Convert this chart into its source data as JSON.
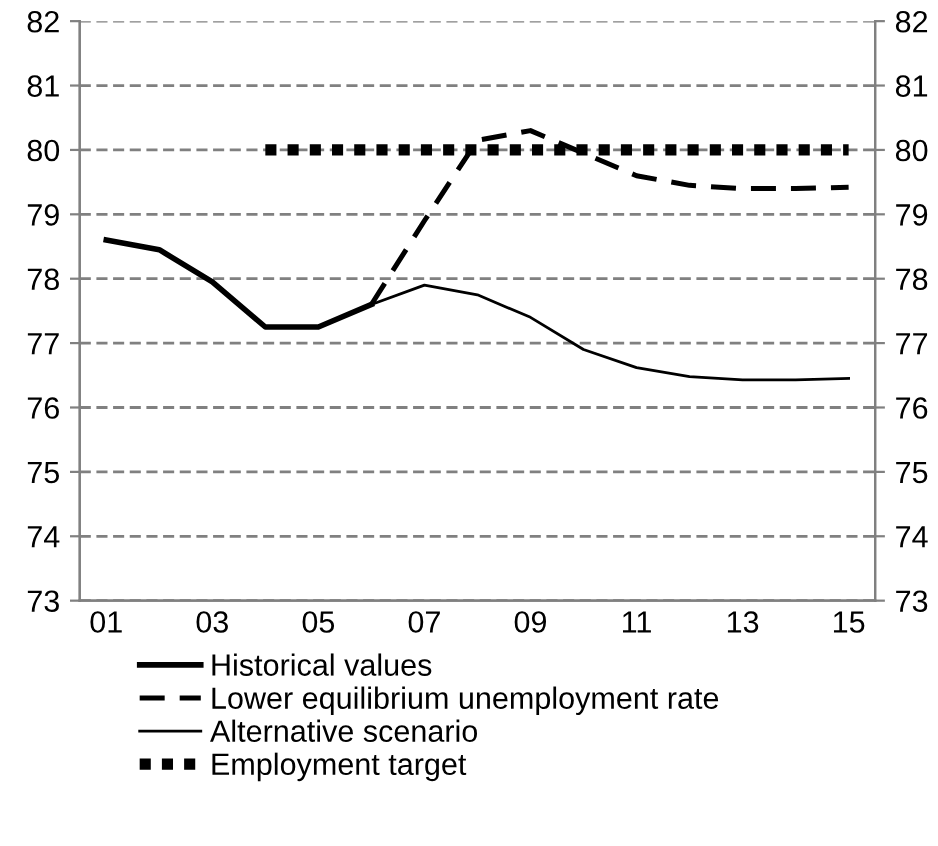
{
  "chart_data": {
    "type": "line",
    "categories": [
      "01",
      null,
      "03",
      null,
      "05",
      null,
      "07",
      null,
      "09",
      null,
      "11",
      null,
      "13",
      null,
      "15"
    ],
    "series": [
      {
        "name": "Historical values",
        "color": "#000000",
        "line_style": "solid",
        "values": [
          78.6,
          78.45,
          77.95,
          77.25,
          77.25,
          77.6,
          null,
          null,
          null,
          null,
          null,
          null,
          null,
          null,
          null
        ]
      },
      {
        "name": "Lower equilibrium unemployment rate",
        "color": "#000000",
        "line_style": "dashed",
        "values": [
          null,
          null,
          null,
          null,
          null,
          77.6,
          78.9,
          80.15,
          80.3,
          79.95,
          79.6,
          79.45,
          79.4,
          79.4,
          79.42
        ]
      },
      {
        "name": "Alternative scenario",
        "color": "#000000",
        "line_style": "solid",
        "values": [
          null,
          null,
          null,
          null,
          null,
          77.6,
          77.9,
          77.75,
          77.4,
          76.9,
          76.62,
          76.48,
          76.43,
          76.43,
          76.45
        ]
      },
      {
        "name": "Employment target",
        "color": "#000000",
        "line_style": "dotted",
        "values": [
          null,
          null,
          null,
          80,
          80,
          80,
          80,
          80,
          80,
          80,
          80,
          80,
          80,
          80,
          80
        ]
      }
    ],
    "ylim": [
      73,
      82
    ],
    "yticks": [
      73,
      74,
      75,
      76,
      77,
      78,
      79,
      80,
      81,
      82
    ],
    "y2lim": [
      73,
      82
    ],
    "y2ticks": [
      73,
      74,
      75,
      76,
      77,
      78,
      79,
      80,
      81,
      82
    ],
    "grid": "y",
    "legend": "bottom",
    "marker": "none"
  }
}
